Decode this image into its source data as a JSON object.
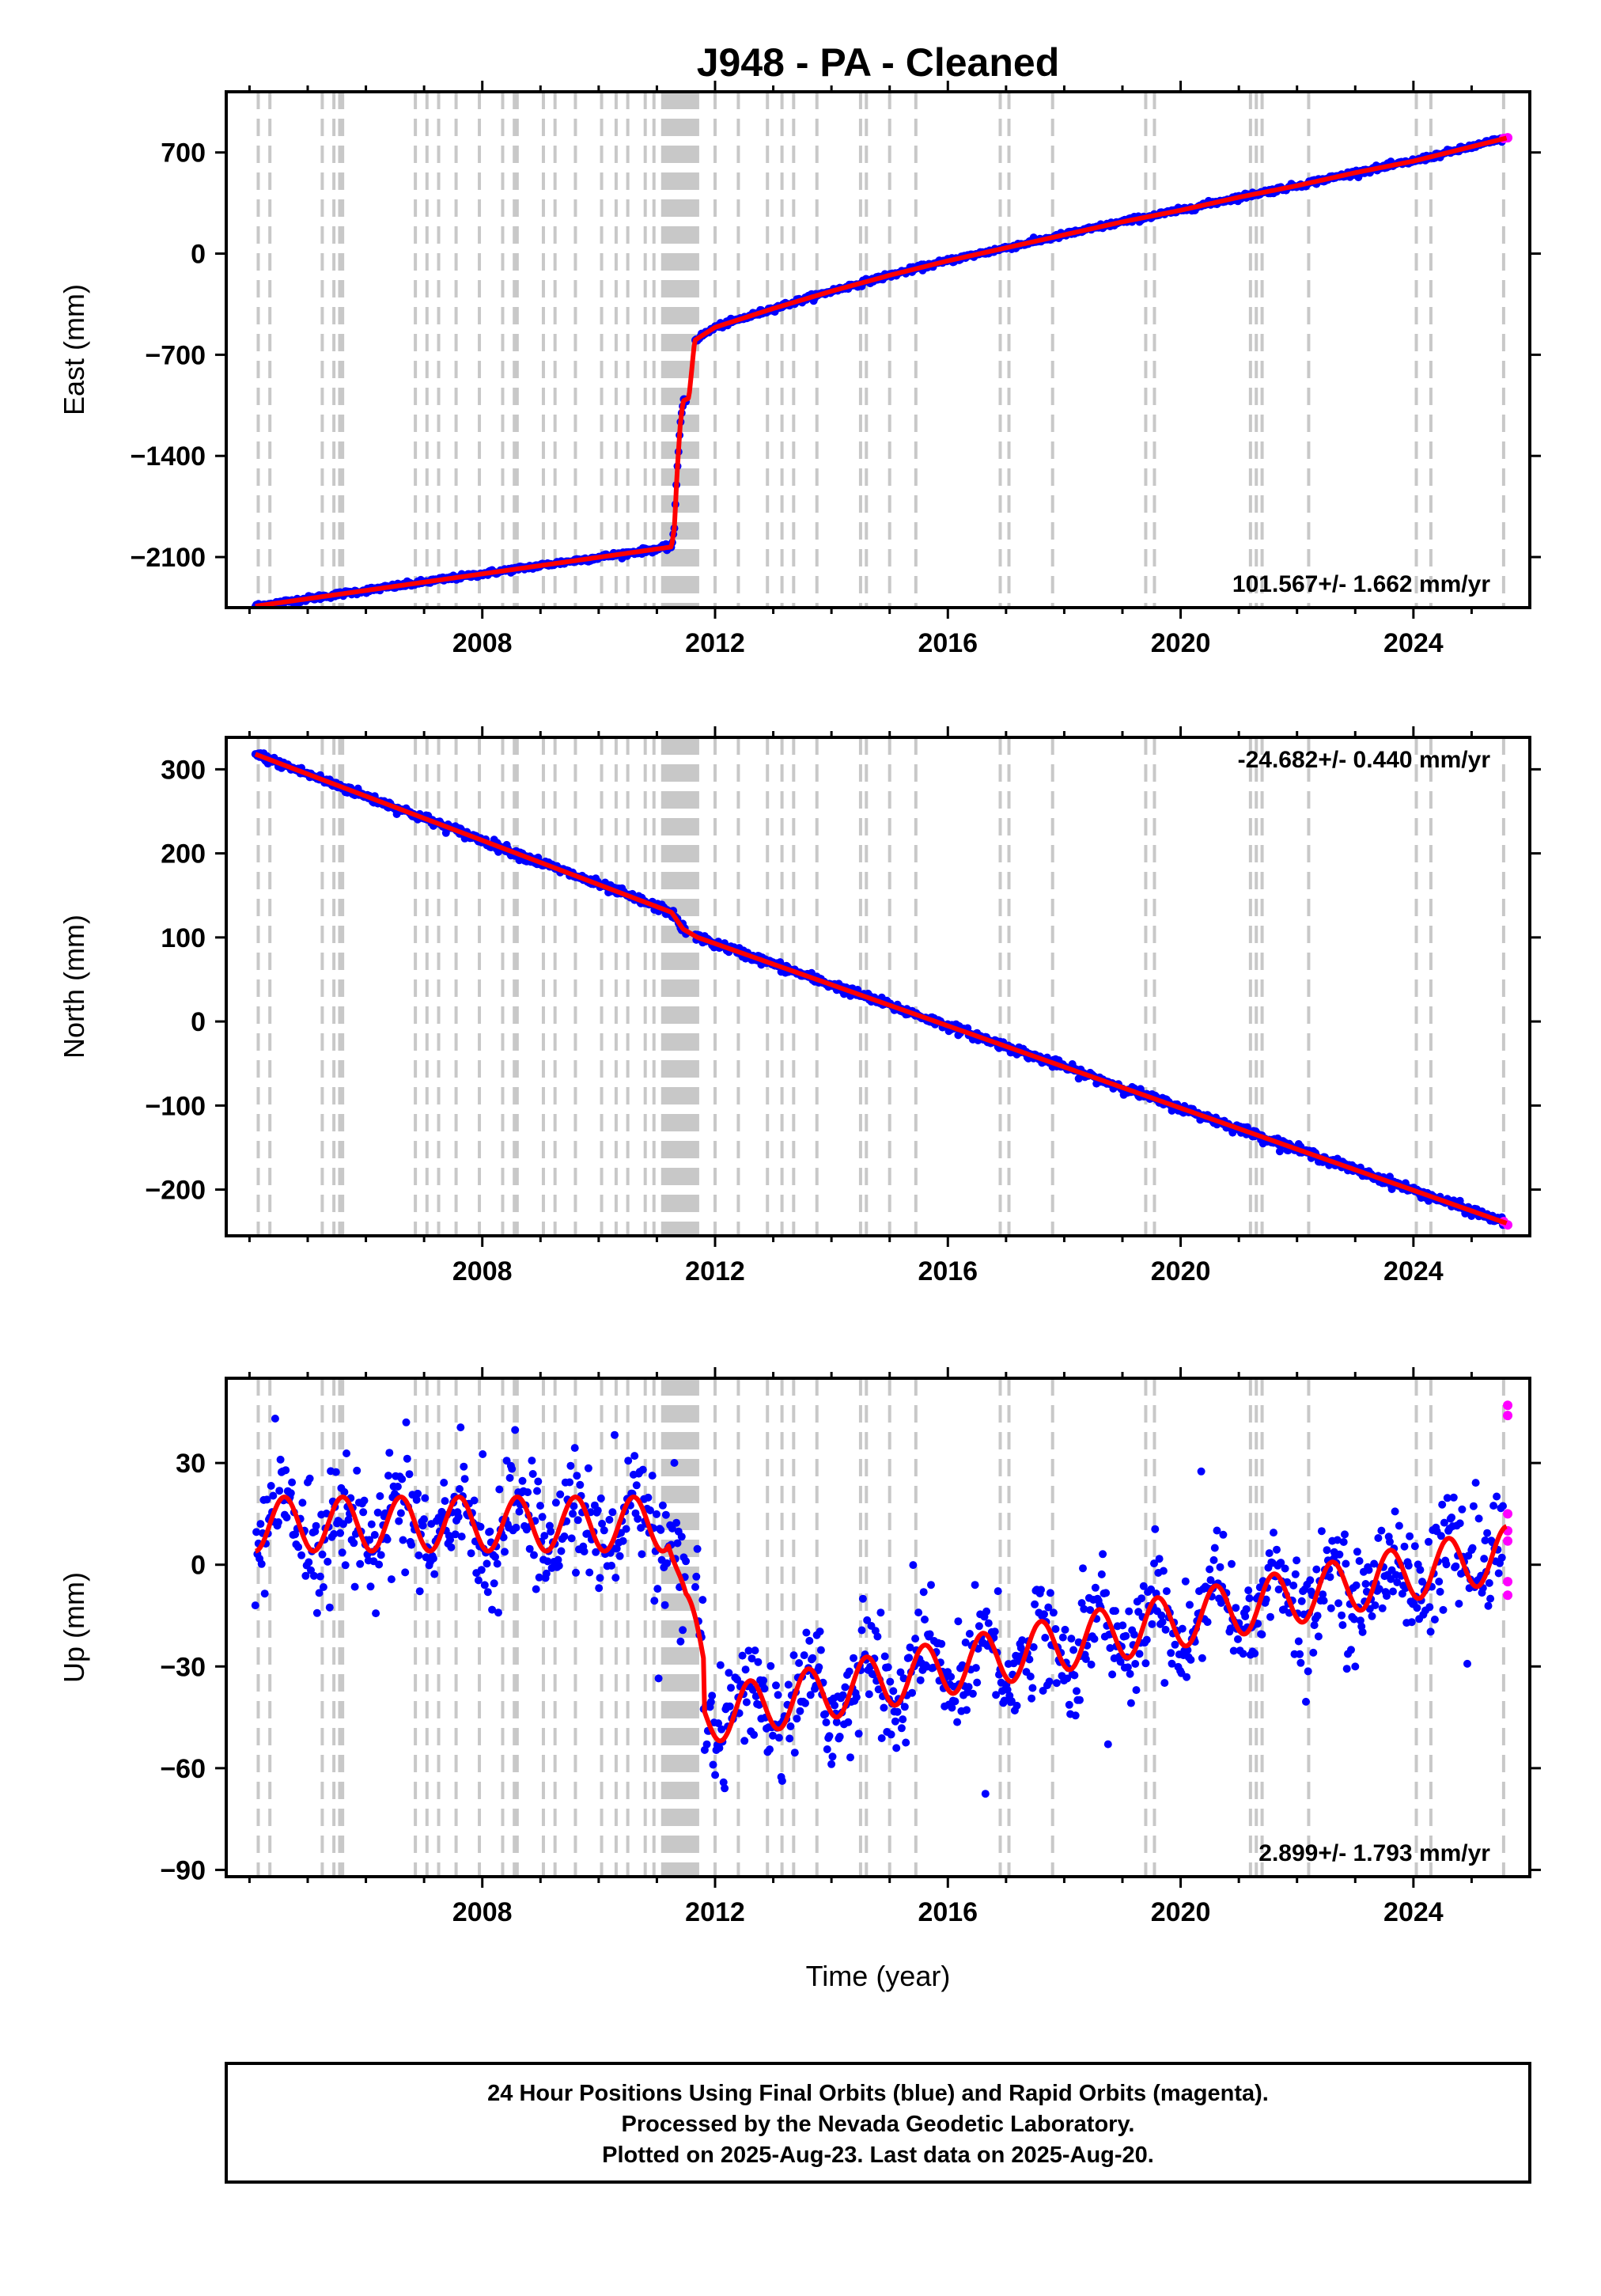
{
  "title": "J948  - PA - Cleaned",
  "xlabel": "Time (year)",
  "caption": [
    "24 Hour Positions Using Final Orbits (blue) and Rapid Orbits (magenta).",
    "Processed by the Nevada Geodetic Laboratory.",
    "Plotted on 2025-Aug-23. Last data on 2025-Aug-20."
  ],
  "colors": {
    "final_orbits": "#0000ff",
    "rapid_orbits": "#ff00ff",
    "model_fit": "#ff0000",
    "equipment_change": "#c8c8c8"
  },
  "chart_data": [
    {
      "type": "scatter",
      "name": "east",
      "ylabel": "East (mm)",
      "rate_label": "101.567+/- 1.662 mm/yr",
      "rate_position": "bottom-right",
      "xlim": [
        2003.6,
        2026.0
      ],
      "ylim": [
        -2450,
        1120
      ],
      "x_ticks": [
        2008,
        2012,
        2016,
        2020,
        2024
      ],
      "y_ticks": [
        700,
        0,
        -700,
        -1400,
        -2100
      ],
      "y_tick_labels": [
        "700",
        "0",
        "−700",
        "−1400",
        "−2100"
      ],
      "trend": [
        [
          2004.1,
          -2440
        ],
        [
          2011.25,
          -2030
        ],
        [
          2011.3,
          -1900
        ],
        [
          2011.35,
          -1500
        ],
        [
          2011.4,
          -1190
        ],
        [
          2011.45,
          -1020
        ],
        [
          2011.55,
          -1000
        ],
        [
          2011.65,
          -600
        ],
        [
          2012.0,
          -510
        ],
        [
          2013.0,
          -380
        ],
        [
          2014.0,
          -260
        ],
        [
          2015.0,
          -150
        ],
        [
          2016.0,
          -50
        ],
        [
          2017.0,
          40
        ],
        [
          2018.0,
          130
        ],
        [
          2019.0,
          220
        ],
        [
          2020.0,
          300
        ],
        [
          2021.0,
          390
        ],
        [
          2022.0,
          470
        ],
        [
          2023.0,
          560
        ],
        [
          2024.0,
          640
        ],
        [
          2025.6,
          800
        ]
      ],
      "rapid_points": [
        [
          2025.55,
          797
        ],
        [
          2025.62,
          802
        ]
      ]
    },
    {
      "type": "scatter",
      "name": "north",
      "ylabel": "North (mm)",
      "rate_label": "-24.682+/- 0.440 mm/yr",
      "rate_position": "top-right",
      "xlim": [
        2003.6,
        2026.0
      ],
      "ylim": [
        -255,
        338
      ],
      "x_ticks": [
        2008,
        2012,
        2016,
        2020,
        2024
      ],
      "y_ticks": [
        300,
        200,
        100,
        0,
        -100,
        -200
      ],
      "y_tick_labels": [
        "300",
        "200",
        "100",
        "0",
        "−100",
        "−200"
      ],
      "trend": [
        [
          2004.1,
          318
        ],
        [
          2011.25,
          130
        ],
        [
          2011.45,
          110
        ],
        [
          2011.7,
          100
        ],
        [
          2025.6,
          -240
        ]
      ],
      "rapid_points": [
        [
          2025.55,
          -238
        ],
        [
          2025.62,
          -242
        ]
      ]
    },
    {
      "type": "scatter",
      "name": "up",
      "ylabel": "Up (mm)",
      "rate_label": "2.899+/- 1.793 mm/yr",
      "rate_position": "bottom-right",
      "xlim": [
        2003.6,
        2026.0
      ],
      "ylim": [
        -92,
        55
      ],
      "x_ticks": [
        2008,
        2012,
        2016,
        2020,
        2024
      ],
      "y_ticks": [
        30,
        0,
        -30,
        -60,
        -90
      ],
      "y_tick_labels": [
        "30",
        "0",
        "−30",
        "−60",
        "−90"
      ],
      "trend_model": {
        "offset_before_2011": 17,
        "amplitude_mm": 8,
        "step_2011_mm": -45,
        "post_2011_rate_mm_per_yr": 3.5
      },
      "rapid_points": [
        [
          2025.62,
          47
        ],
        [
          2025.62,
          44
        ],
        [
          2025.62,
          15
        ],
        [
          2025.62,
          10
        ],
        [
          2025.62,
          7
        ],
        [
          2025.62,
          -5
        ],
        [
          2025.62,
          -9
        ]
      ]
    }
  ],
  "equipment_change_years": [
    2004.15,
    2004.35,
    2005.25,
    2005.45,
    2005.55,
    2005.6,
    2006.85,
    2007.05,
    2007.25,
    2007.55,
    2007.95,
    2008.35,
    2008.55,
    2008.6,
    2009.05,
    2009.25,
    2009.6,
    2010.05,
    2010.3,
    2010.5,
    2010.8,
    2010.95,
    2011.1,
    2011.15,
    2011.2,
    2011.25,
    2011.3,
    2011.35,
    2011.4,
    2011.45,
    2011.5,
    2011.55,
    2011.6,
    2011.65,
    2011.7,
    2012.0,
    2012.4,
    2012.9,
    2013.15,
    2013.35,
    2013.75,
    2014.5,
    2014.6,
    2015.0,
    2015.45,
    2016.9,
    2017.05,
    2017.8,
    2019.4,
    2019.55,
    2021.2,
    2021.3,
    2021.4,
    2022.2,
    2024.05,
    2024.3,
    2025.55
  ]
}
